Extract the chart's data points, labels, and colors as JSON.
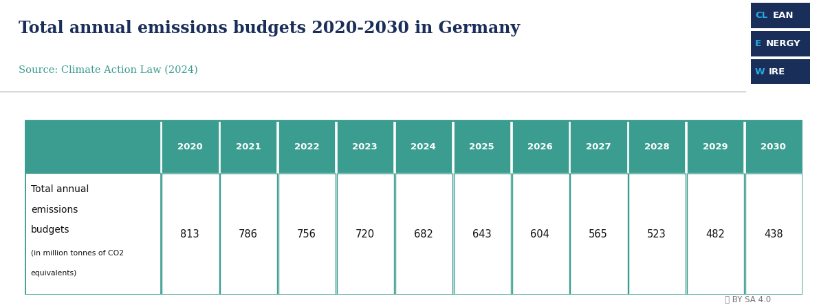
{
  "title": "Total annual emissions budgets 2020-2030 in Germany",
  "source": "Source: Climate Action Law (2024)",
  "years": [
    "2020",
    "2021",
    "2022",
    "2023",
    "2024",
    "2025",
    "2026",
    "2027",
    "2028",
    "2029",
    "2030"
  ],
  "values": [
    813,
    786,
    756,
    720,
    682,
    643,
    604,
    565,
    523,
    482,
    438
  ],
  "row_label_line1": "Total annual",
  "row_label_line2": "emissions",
  "row_label_line3": "budgets",
  "row_label_line4": "(in million tonnes of CO2",
  "row_label_line5": "equivalents)",
  "header_bg": "#3a9d8f",
  "title_color": "#1a2e5a",
  "source_color": "#3a9d8f",
  "logo_bg_dark": "#1a2e5a",
  "logo_cyan": "#29abe2",
  "logo_white": "#ffffff",
  "background_color": "#ffffff",
  "header_area_bg": "#f5f5f5",
  "cc_color": "#777777",
  "cell_text_color": "#111111",
  "label_text_normal": "#111111"
}
